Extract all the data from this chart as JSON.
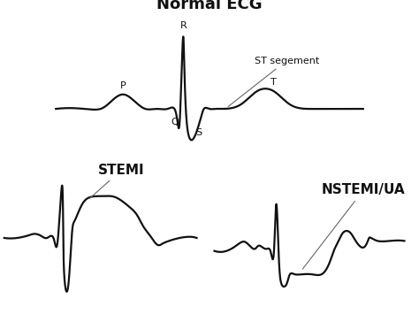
{
  "title": "Normal ECG",
  "stemi_label": "STEMI",
  "nstemi_label": "NSTEMI/UA",
  "st_segment_label": "ST segement",
  "labels": {
    "P": "P",
    "R": "R",
    "Q": "Q",
    "S": "S",
    "T": "T"
  },
  "bg_color": "#ffffff",
  "line_color": "#111111",
  "title_fontsize": 13,
  "label_fontsize": 8,
  "bold_label_fontsize": 11,
  "lw": 1.6
}
